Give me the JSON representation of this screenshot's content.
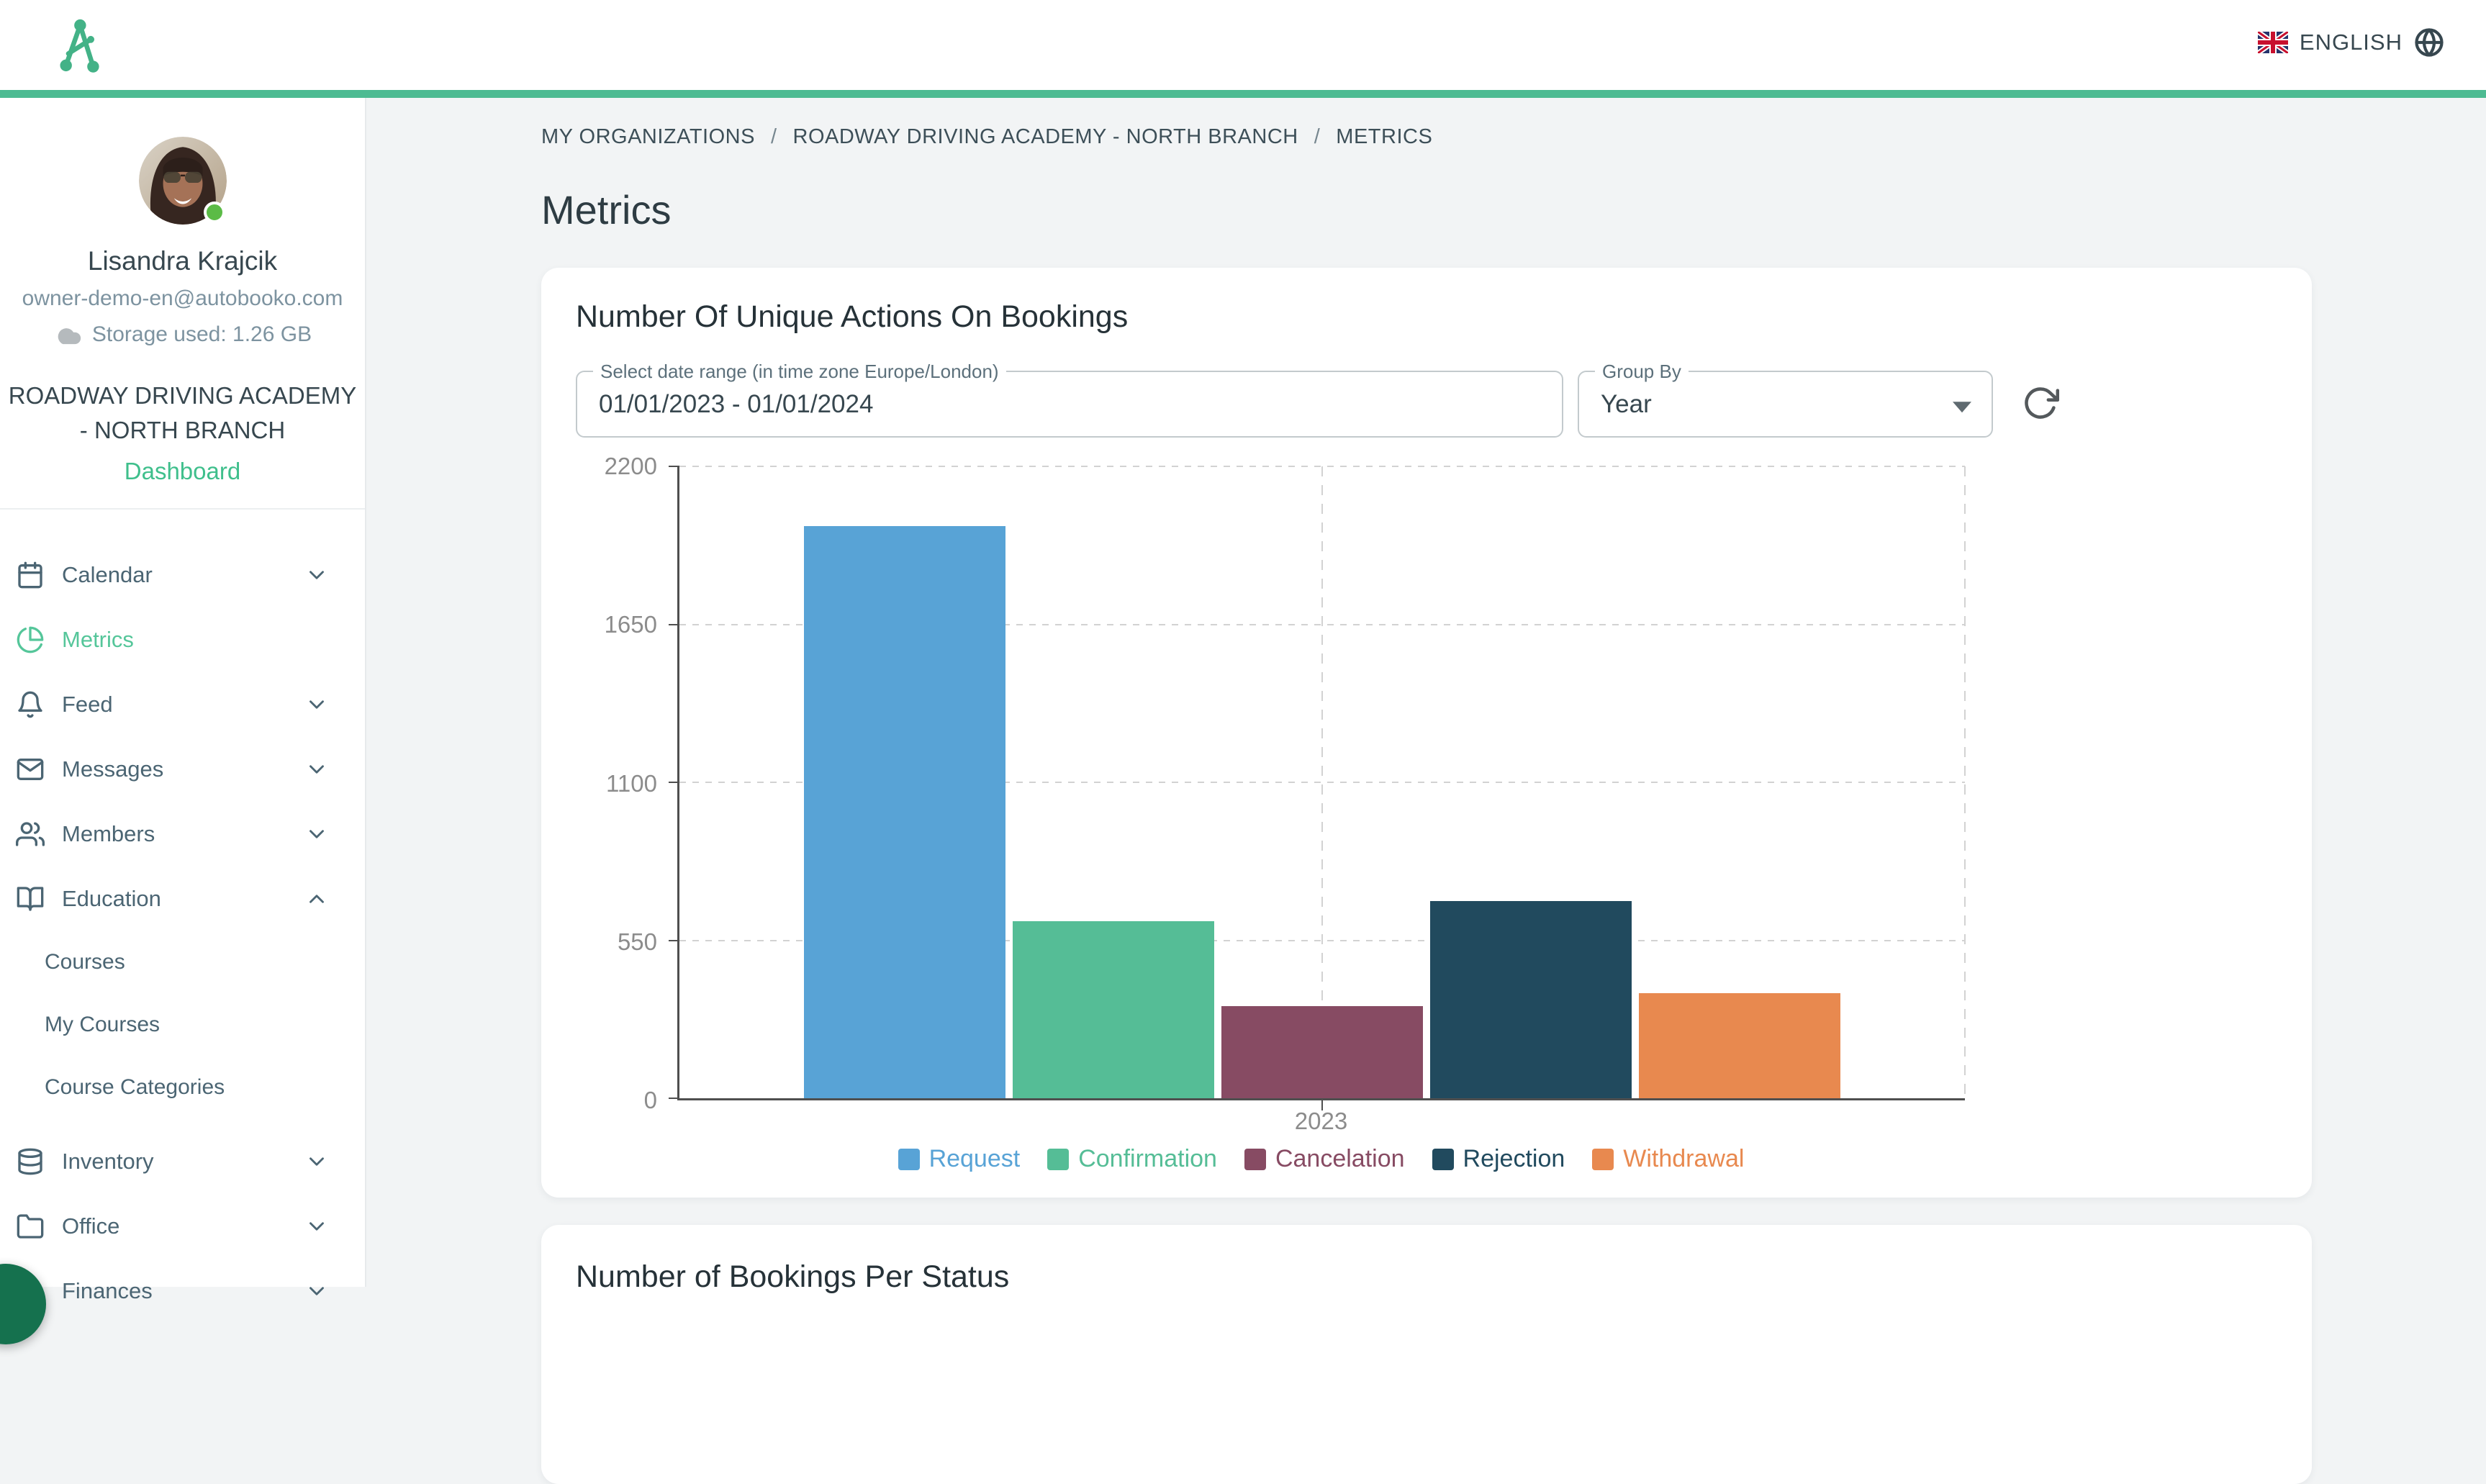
{
  "header": {
    "language": "ENGLISH",
    "flag_icon": "uk-flag",
    "globe_icon": "globe"
  },
  "sidebar": {
    "user": {
      "name": "Lisandra Krajcik",
      "email": "owner-demo-en@autobooko.com",
      "storage": "Storage used: 1.26 GB",
      "status": "online"
    },
    "organization": {
      "line1": "ROADWAY DRIVING ACADEMY",
      "line2": "- NORTH BRANCH",
      "dashboard_label": "Dashboard"
    },
    "items": [
      {
        "label": "Calendar",
        "icon": "calendar",
        "chevron": "down"
      },
      {
        "label": "Metrics",
        "icon": "pie-chart",
        "chevron": null,
        "active": true
      },
      {
        "label": "Feed",
        "icon": "bell",
        "chevron": "down"
      },
      {
        "label": "Messages",
        "icon": "mail",
        "chevron": "down"
      },
      {
        "label": "Members",
        "icon": "users",
        "chevron": "down"
      },
      {
        "label": "Education",
        "icon": "book-open",
        "chevron": "up",
        "expanded": true
      },
      {
        "label": "Courses",
        "sub": true
      },
      {
        "label": "My Courses",
        "sub": true
      },
      {
        "label": "Course Categories",
        "sub": true
      },
      {
        "label": "Inventory",
        "icon": "database",
        "chevron": "down",
        "gap": true
      },
      {
        "label": "Office",
        "icon": "folder",
        "chevron": "down"
      },
      {
        "label": "Finances",
        "icon": "dollar",
        "chevron": "down"
      }
    ]
  },
  "breadcrumb": {
    "items": [
      "MY ORGANIZATIONS",
      "ROADWAY DRIVING ACADEMY - NORTH BRANCH",
      "METRICS"
    ],
    "separator": "/"
  },
  "page": {
    "title": "Metrics"
  },
  "cards": {
    "actions": {
      "title": "Number Of Unique Actions On Bookings",
      "date_range": {
        "label": "Select date range (in time zone Europe/London)",
        "value": "01/01/2023 - 01/01/2024"
      },
      "group_by": {
        "label": "Group By",
        "value": "Year"
      },
      "refresh_icon": "refresh"
    },
    "status": {
      "title": "Number of Bookings Per Status"
    }
  },
  "chart_data": {
    "type": "bar",
    "title": "Number Of Unique Actions On Bookings",
    "categories": [
      "2023"
    ],
    "series": [
      {
        "name": "Request",
        "values": [
          1985
        ],
        "color": "#58a3d6"
      },
      {
        "name": "Confirmation",
        "values": [
          615
        ],
        "color": "#55bd96"
      },
      {
        "name": "Cancelation",
        "values": [
          320
        ],
        "color": "#874b63"
      },
      {
        "name": "Rejection",
        "values": [
          685
        ],
        "color": "#214a5e"
      },
      {
        "name": "Withdrawal",
        "values": [
          365
        ],
        "color": "#e8894f"
      }
    ],
    "xlabel": "",
    "ylabel": "",
    "ylim": [
      0,
      2200
    ],
    "yticks": [
      0,
      550,
      1100,
      1650,
      2200
    ],
    "grid": "dashed",
    "legend_position": "bottom"
  },
  "colors": {
    "accent_green": "#4dbb92",
    "active_green": "#55c69a",
    "link_green": "#3fbf8c",
    "text_dark": "#37474f",
    "sidebar_text": "#4b6573"
  }
}
